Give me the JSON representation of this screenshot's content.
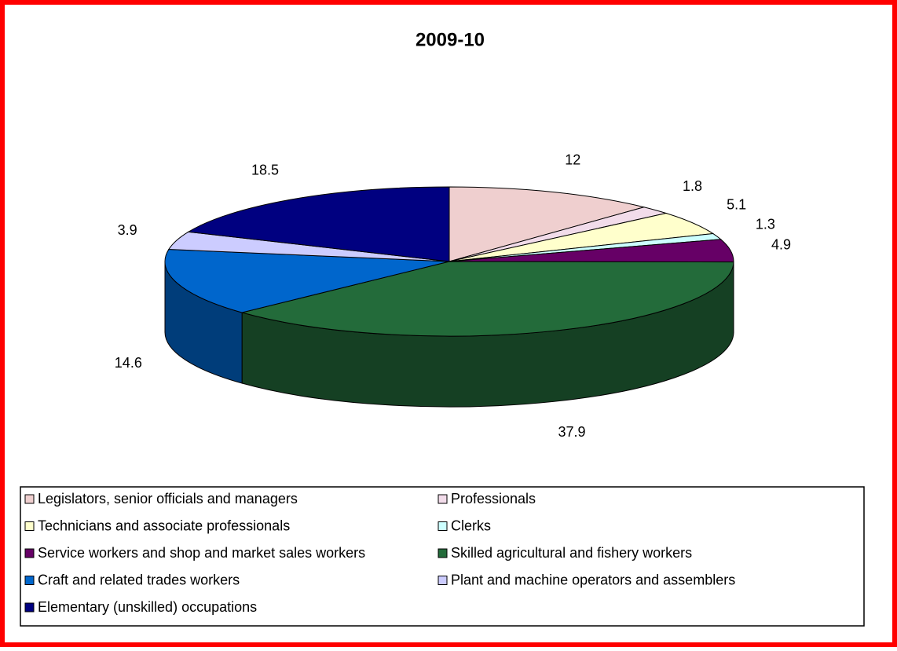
{
  "chart_data": {
    "type": "pie3d",
    "title": "2009-10",
    "categories": [
      "Legislators, senior officials and managers",
      "Professionals",
      "Technicians and associate professionals",
      "Clerks",
      "Service workers and shop and market sales workers",
      "Skilled agricultural and fishery workers",
      "Craft and related trades workers",
      "Plant and machine operators and assemblers",
      "Elementary (unskilled) occupations"
    ],
    "values": [
      12,
      1.8,
      5.1,
      1.3,
      4.9,
      37.9,
      14.6,
      3.9,
      18.5
    ],
    "colors": [
      "#efcfcf",
      "#f2dcea",
      "#ffffcc",
      "#ccffff",
      "#660066",
      "#236b3a",
      "#0066cc",
      "#ccccff",
      "#000080"
    ],
    "legend": "bottom"
  }
}
